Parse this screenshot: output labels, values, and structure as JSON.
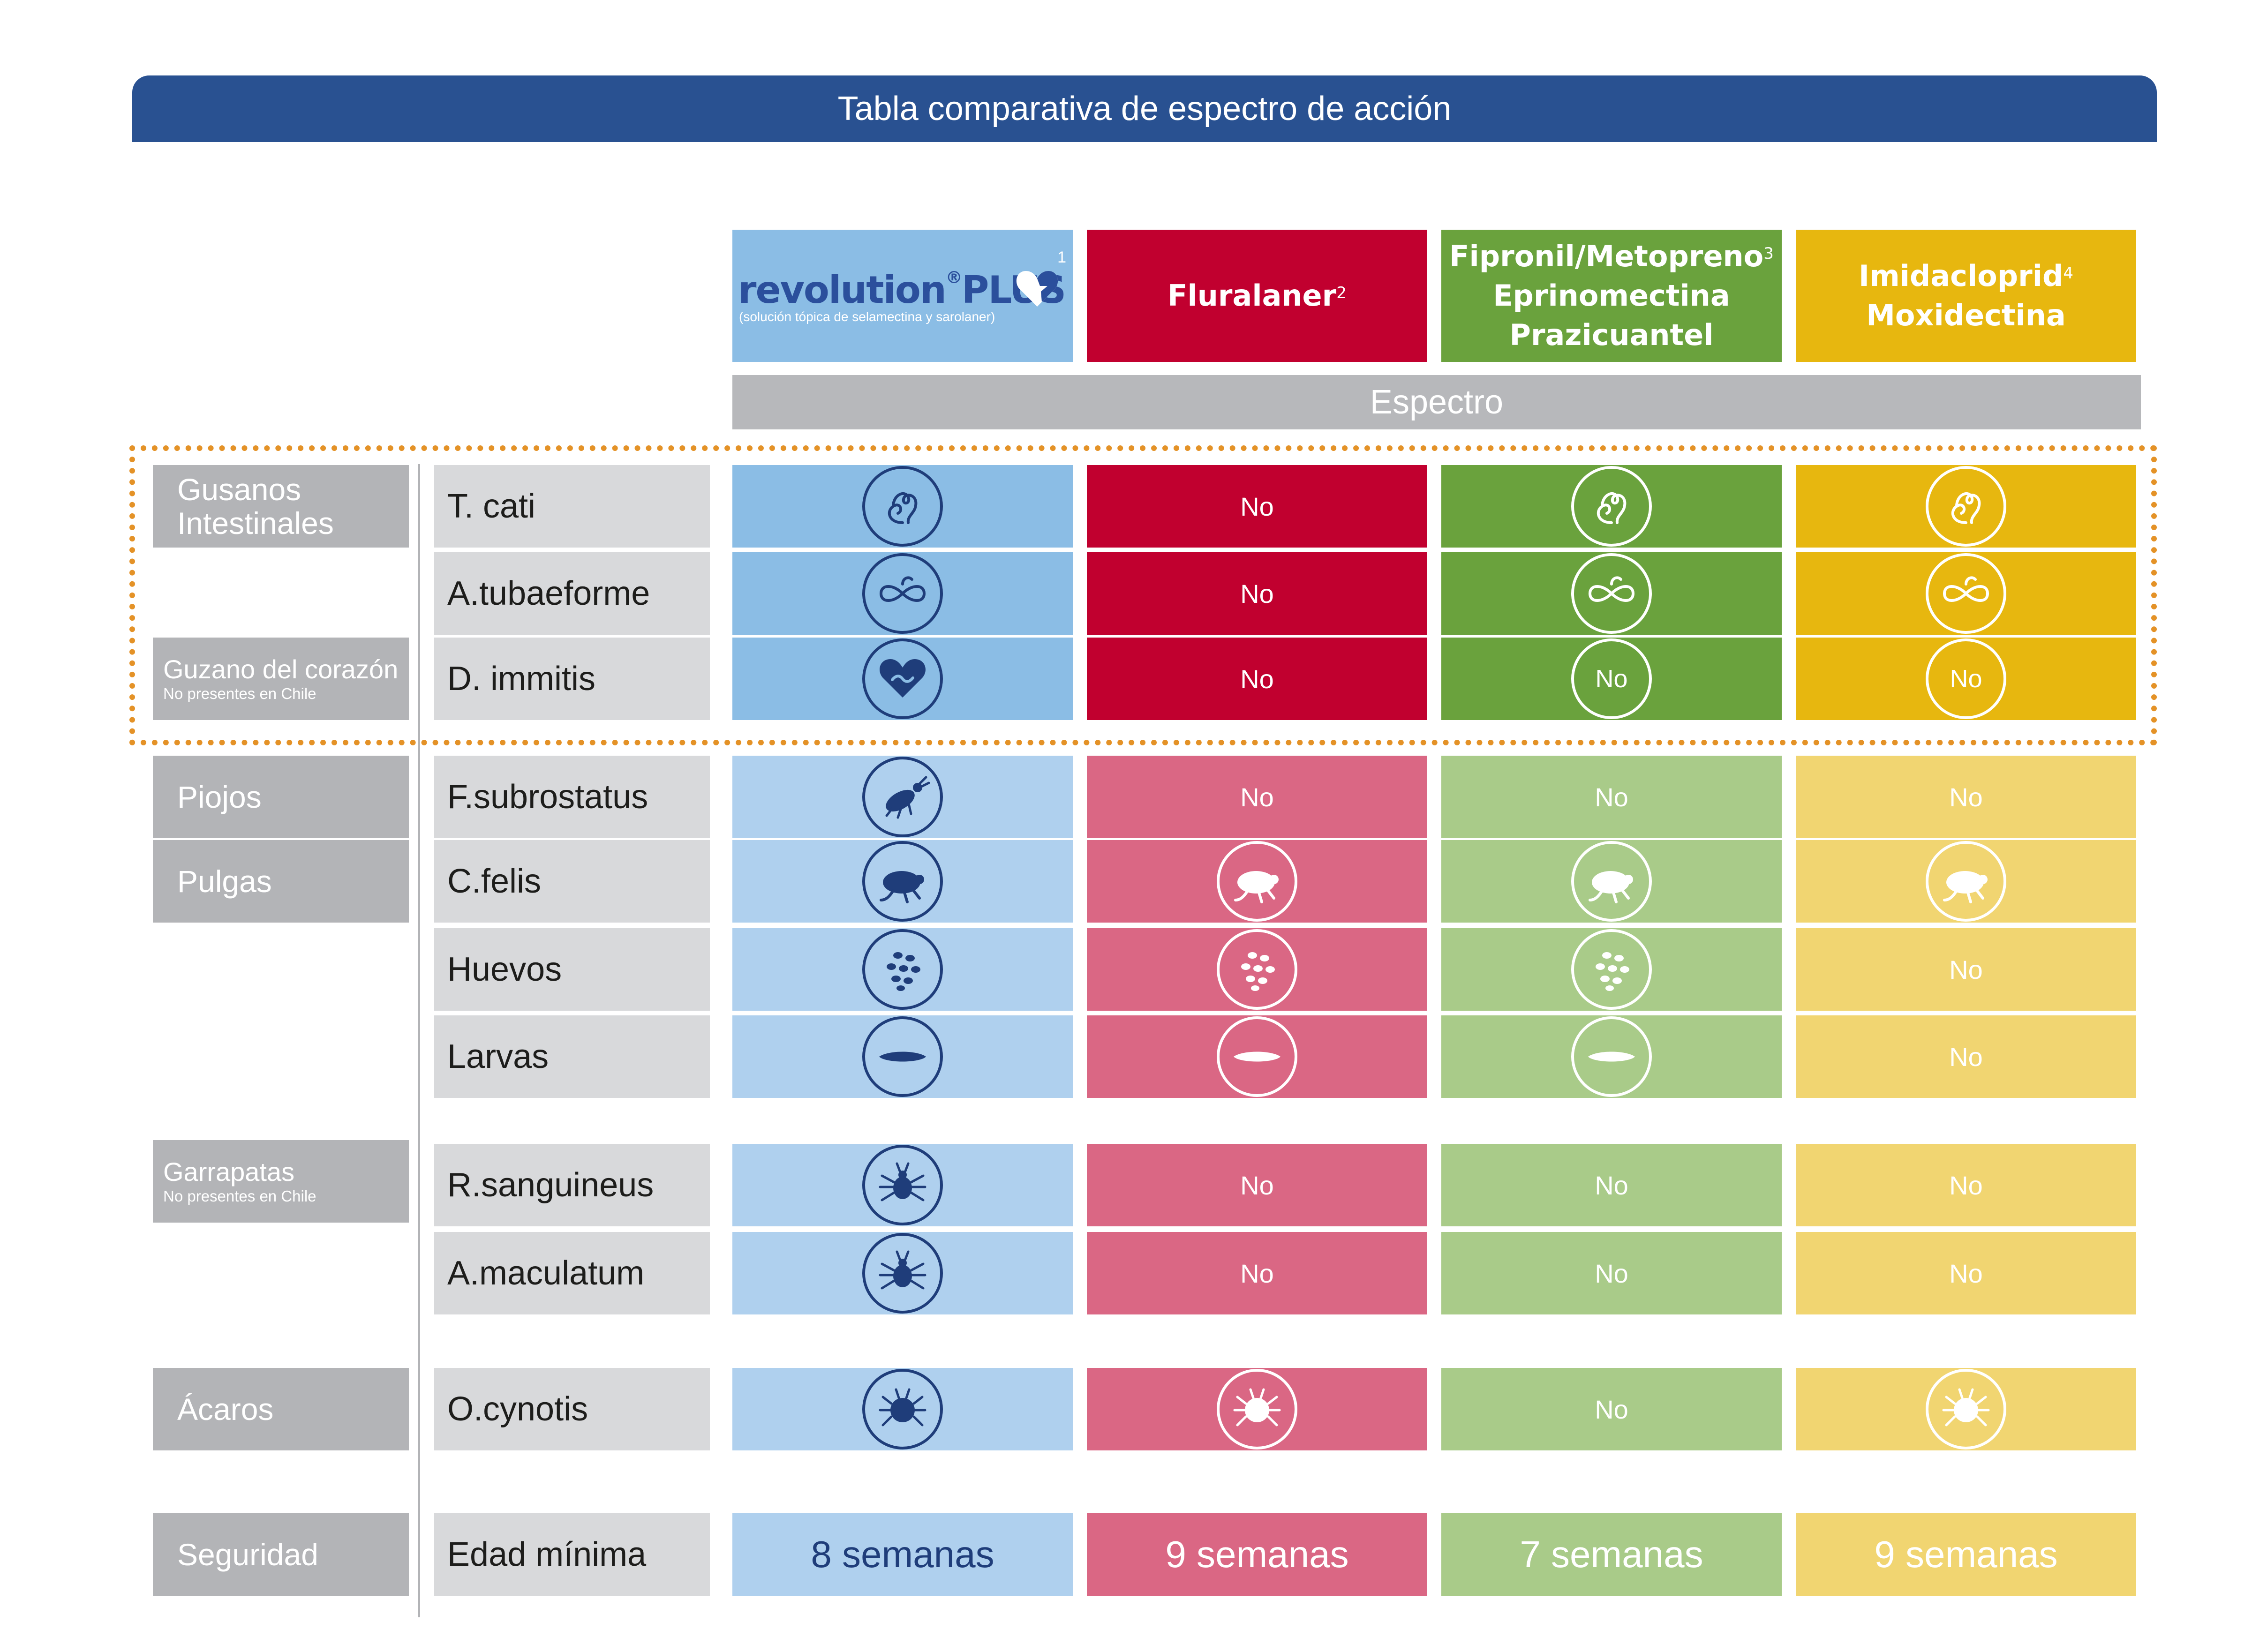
{
  "title": "Tabla comparativa de espectro de acción",
  "products": {
    "revolution": {
      "brand": "revolution",
      "plus": "PLUS",
      "reg": "®",
      "subtitle": "(solución tópica de selamectina y sarolaner)",
      "sup": "1",
      "color": "#8bbde5"
    },
    "fluralaner": {
      "line1": "Fluralaner",
      "sup": "2",
      "color": "#c1002f"
    },
    "fipronil": {
      "line1": "Fipronil/Metopreno",
      "sup": "3",
      "line2": "Eprinomectina",
      "line3": "Prazicuantel",
      "color": "#6aa23d"
    },
    "imidacloprid": {
      "line1": "Imidacloprid",
      "sup": "4",
      "line2": "Moxidectina",
      "color": "#e7b70f"
    }
  },
  "spectrum_label": "Espectro",
  "categories": {
    "gusanos": {
      "line1": "Gusanos",
      "line2": "Intestinales"
    },
    "corazon": {
      "label": "Guzano del corazón",
      "note": "No presentes en Chile"
    },
    "piojos": {
      "label": "Piojos"
    },
    "pulgas": {
      "label": "Pulgas"
    },
    "garrapatas": {
      "label": "Garrapatas",
      "note": "No presentes en Chile"
    },
    "acaros": {
      "label": "Ácaros"
    },
    "seguridad": {
      "label": "Seguridad"
    }
  },
  "rows": {
    "tcati": {
      "parasite": "T. cati",
      "rev": "roundworm-icon",
      "flu": "No",
      "fip": "roundworm-icon",
      "imi": "roundworm-icon"
    },
    "atub": {
      "parasite": "A.tubaeforme",
      "rev": "hookworm-icon",
      "flu": "No",
      "fip": "hookworm-icon",
      "imi": "hookworm-icon"
    },
    "dimm": {
      "parasite": "D. immitis",
      "rev": "heartworm-icon",
      "flu": "No",
      "fip": "No",
      "imi": "No"
    },
    "fsub": {
      "parasite": "F.subrostatus",
      "rev": "louse-icon",
      "flu": "No",
      "fip": "No",
      "imi": "No"
    },
    "cfelis": {
      "parasite": "C.felis",
      "rev": "flea-icon",
      "flu": "flea-icon",
      "fip": "flea-icon",
      "imi": "flea-icon"
    },
    "huevos": {
      "parasite": "Huevos",
      "rev": "flea-eggs-icon",
      "flu": "flea-eggs-icon",
      "fip": "flea-eggs-icon",
      "imi": "No"
    },
    "larvas": {
      "parasite": "Larvas",
      "rev": "larva-icon",
      "flu": "larva-icon",
      "fip": "larva-icon",
      "imi": "No"
    },
    "rsang": {
      "parasite": "R.sanguineus",
      "rev": "tick-icon",
      "flu": "No",
      "fip": "No",
      "imi": "No"
    },
    "amac": {
      "parasite": "A.maculatum",
      "rev": "tick-icon",
      "flu": "No",
      "fip": "No",
      "imi": "No"
    },
    "ocyn": {
      "parasite": "O.cynotis",
      "rev": "ear-mite-icon",
      "flu": "ear-mite-icon",
      "fip": "No",
      "imi": "ear-mite-icon"
    },
    "edad": {
      "parasite": "Edad mínima",
      "rev": "8 semanas",
      "flu": "9 semanas",
      "fip": "7 semanas",
      "imi": "9 semanas"
    }
  },
  "colors": {
    "title_bar": "#295191",
    "rev_strong": "#8bbde5",
    "rev_light": "#afd0ee",
    "flu_strong": "#c1002f",
    "flu_light": "#da6784",
    "fip_strong": "#6aa23d",
    "fip_light": "#a9cb89",
    "imi_strong": "#e7b70f",
    "imi_light": "#f1d571",
    "highlight_border": "#e49227"
  }
}
